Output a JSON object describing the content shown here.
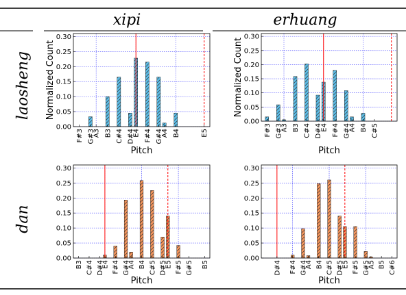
{
  "columns": [
    "xipi",
    "erhuang"
  ],
  "rows": [
    "laosheng",
    "dan"
  ],
  "colors": {
    "laosheng_bar": "#5bbde8",
    "dan_bar": "#f5945a",
    "grid": "#3a3aff",
    "reference_line": "#ff0000",
    "hatch": "#333333"
  },
  "chart_data": [
    {
      "type": "bar",
      "column": "xipi",
      "row": "laosheng",
      "xlabel": "Pitch",
      "ylabel": "Normalized Count",
      "ylim": [
        0,
        0.31
      ],
      "yticks": [
        "0.00",
        "0.05",
        "0.10",
        "0.15",
        "0.20",
        "0.25",
        "0.30"
      ],
      "xticklabels": [
        "F#3",
        "G#3",
        "A3",
        "B3",
        "C#4",
        "D#4",
        "E4",
        "F#4",
        "G#4",
        "A4",
        "B4",
        "E5"
      ],
      "bars": [
        {
          "pitch": "G#3",
          "value": 0.033
        },
        {
          "pitch": "B3",
          "value": 0.1
        },
        {
          "pitch": "C#4",
          "value": 0.165
        },
        {
          "pitch": "D#4",
          "value": 0.045
        },
        {
          "pitch": "E4",
          "value": 0.228
        },
        {
          "pitch": "F#4",
          "value": 0.215
        },
        {
          "pitch": "G#4",
          "value": 0.165
        },
        {
          "pitch": "A4",
          "value": 0.012
        },
        {
          "pitch": "B4",
          "value": 0.045
        }
      ],
      "solid_line": "E4",
      "dashed_line": "E5"
    },
    {
      "type": "bar",
      "column": "erhuang",
      "row": "laosheng",
      "xlabel": "Pitch",
      "ylabel": "Normalized Count",
      "ylim": [
        0,
        0.31
      ],
      "yticks": [
        "0.00",
        "0.05",
        "0.10",
        "0.15",
        "0.20",
        "0.25",
        "0.30"
      ],
      "xticklabels": [
        "F#3",
        "G#3",
        "A3",
        "B3",
        "C#4",
        "D#4",
        "E4",
        "F#4",
        "G#4",
        "A4",
        "B4",
        "C#5"
      ],
      "bars": [
        {
          "pitch": "F#3",
          "value": 0.015
        },
        {
          "pitch": "G#3",
          "value": 0.058
        },
        {
          "pitch": "A3",
          "value": 0.005
        },
        {
          "pitch": "B3",
          "value": 0.158
        },
        {
          "pitch": "C#4",
          "value": 0.203
        },
        {
          "pitch": "D#4",
          "value": 0.092
        },
        {
          "pitch": "E4",
          "value": 0.138
        },
        {
          "pitch": "F#4",
          "value": 0.18
        },
        {
          "pitch": "G#4",
          "value": 0.108
        },
        {
          "pitch": "A4",
          "value": 0.015
        },
        {
          "pitch": "B4",
          "value": 0.028
        }
      ],
      "solid_line": "E4",
      "dashed_line": "E5"
    },
    {
      "type": "bar",
      "column": "xipi",
      "row": "dan",
      "xlabel": "Pitch",
      "ylabel": "",
      "ylim": [
        0,
        0.31
      ],
      "yticks": [
        "0.00",
        "0.05",
        "0.10",
        "0.15",
        "0.20",
        "0.25",
        "0.30"
      ],
      "xticklabels": [
        "B3",
        "C#4",
        "D#4",
        "E4",
        "F#4",
        "G#4",
        "A4",
        "B4",
        "C#5",
        "D#5",
        "E5",
        "F#5",
        "G#5",
        "B5"
      ],
      "bars": [
        {
          "pitch": "E4",
          "value": 0.01
        },
        {
          "pitch": "F#4",
          "value": 0.04
        },
        {
          "pitch": "G#4",
          "value": 0.193
        },
        {
          "pitch": "A4",
          "value": 0.02
        },
        {
          "pitch": "B4",
          "value": 0.258
        },
        {
          "pitch": "C#5",
          "value": 0.225
        },
        {
          "pitch": "D#5",
          "value": 0.07
        },
        {
          "pitch": "E5",
          "value": 0.14
        },
        {
          "pitch": "F#5",
          "value": 0.042
        }
      ],
      "solid_line": "E4",
      "dashed_line": "E5"
    },
    {
      "type": "bar",
      "column": "erhuang",
      "row": "dan",
      "xlabel": "Pitch",
      "ylabel": "",
      "ylim": [
        0,
        0.31
      ],
      "yticks": [
        "0.00",
        "0.05",
        "0.10",
        "0.15",
        "0.20",
        "0.25",
        "0.30"
      ],
      "xticklabels": [
        "D#4",
        "F#4",
        "G#4",
        "A4",
        "B4",
        "C#5",
        "D#5",
        "E5",
        "F#5",
        "G#5",
        "A5",
        "B5",
        "C#6"
      ],
      "bars": [
        {
          "pitch": "F#4",
          "value": 0.01
        },
        {
          "pitch": "G#4",
          "value": 0.098
        },
        {
          "pitch": "A4",
          "value": 0.008
        },
        {
          "pitch": "B4",
          "value": 0.248
        },
        {
          "pitch": "C#5",
          "value": 0.26
        },
        {
          "pitch": "D#5",
          "value": 0.14
        },
        {
          "pitch": "E5",
          "value": 0.105
        },
        {
          "pitch": "F#5",
          "value": 0.105
        },
        {
          "pitch": "G#5",
          "value": 0.022
        },
        {
          "pitch": "A5",
          "value": 0.004
        }
      ],
      "solid_line": "D#4",
      "dashed_line": "E5"
    }
  ]
}
